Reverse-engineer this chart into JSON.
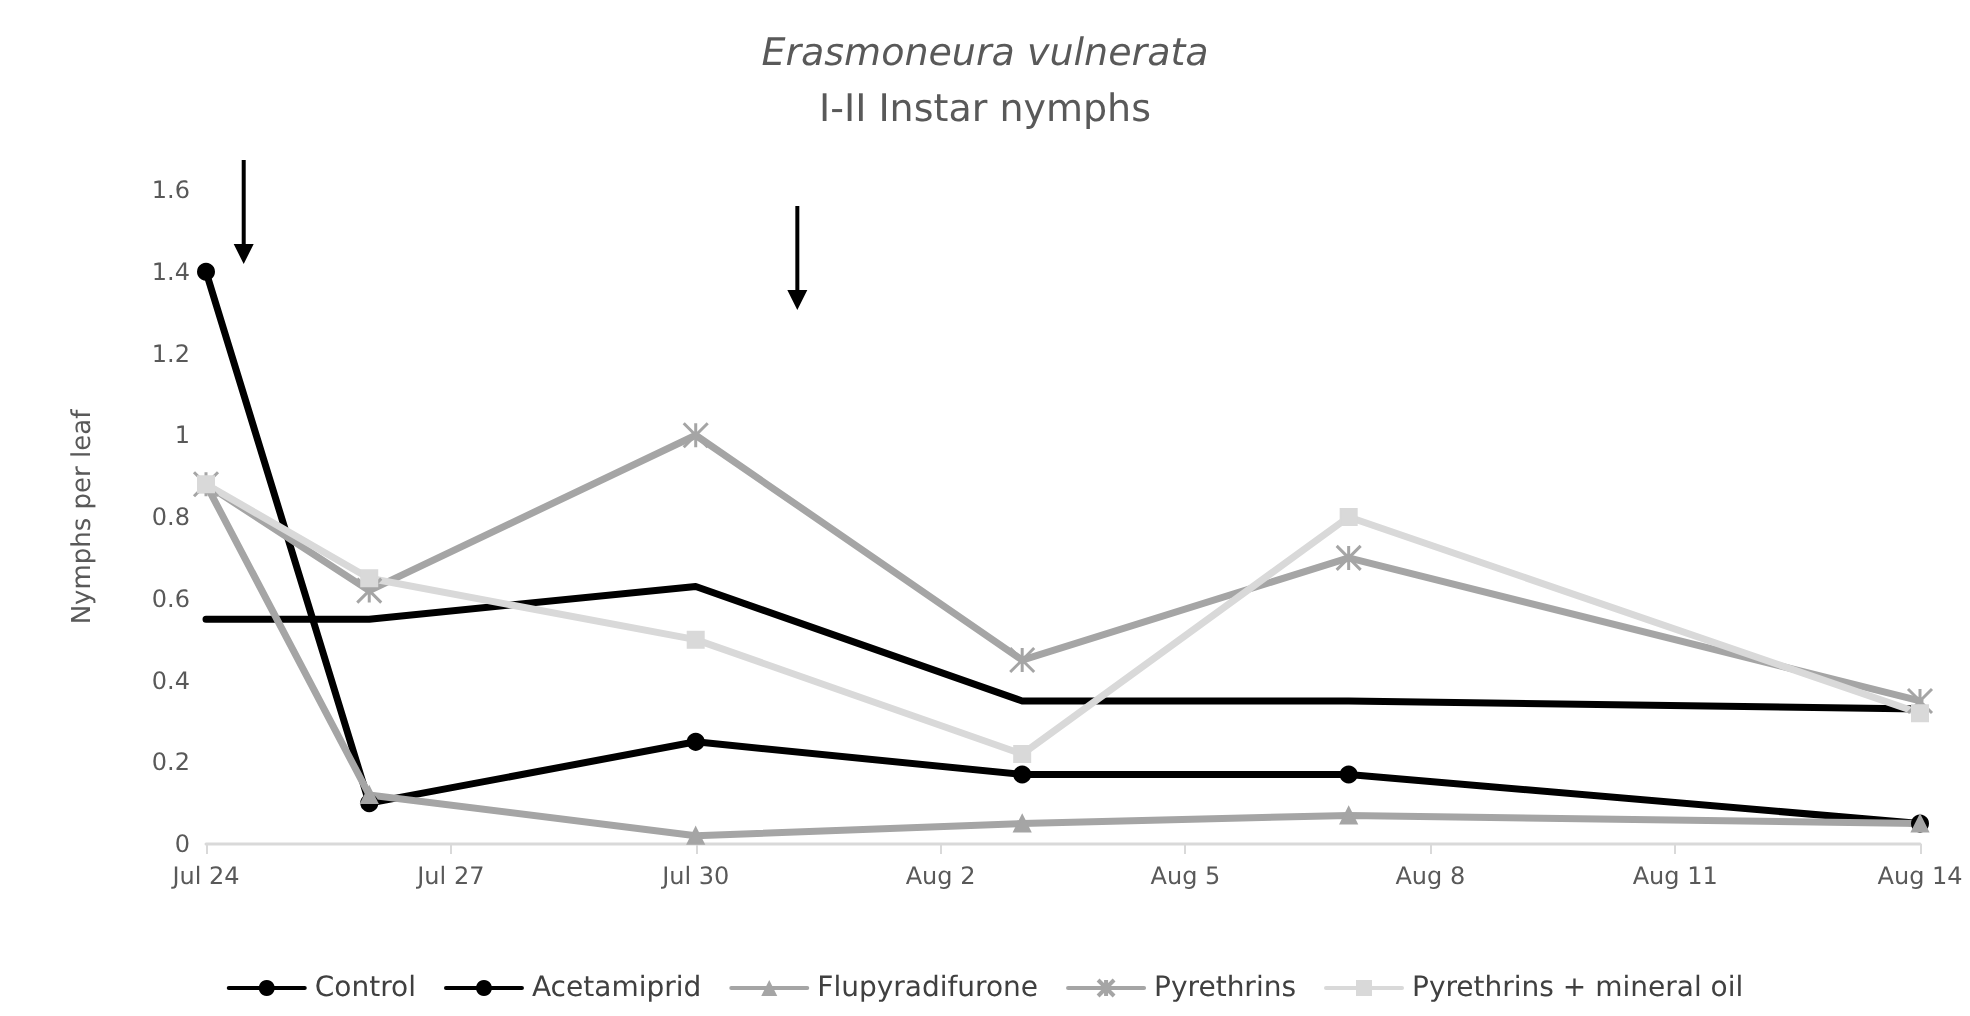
{
  "chart_data": {
    "type": "line",
    "title": "Erasmoneura vulnerata",
    "subtitle": "I-II Instar nymphs",
    "ylabel": "Nymphs per leaf",
    "x": [
      "--07-24",
      "--07-26",
      "--07-30",
      "--08-03",
      "--08-07",
      "--08-14"
    ],
    "xlim": [
      "--07-24",
      "--08-14"
    ],
    "xticks": [
      {
        "value": "--07-24",
        "label": "Jul 24"
      },
      {
        "value": "--07-27",
        "label": "Jul 27"
      },
      {
        "value": "--07-30",
        "label": "Jul 30"
      },
      {
        "value": "--08-02",
        "label": "Aug 2"
      },
      {
        "value": "--08-05",
        "label": "Aug 5"
      },
      {
        "value": "--08-08",
        "label": "Aug 8"
      },
      {
        "value": "--08-11",
        "label": "Aug 11"
      },
      {
        "value": "--08-14",
        "label": "Aug 14"
      }
    ],
    "ylim": [
      0,
      1.6
    ],
    "yticks": [
      0,
      0.2,
      0.4,
      0.6,
      0.8,
      1,
      1.2,
      1.4,
      1.6
    ],
    "series": [
      {
        "name": "Control",
        "color": "#000000",
        "marker": "none",
        "values": [
          0.55,
          0.55,
          0.63,
          0.35,
          0.35,
          0.33
        ]
      },
      {
        "name": "Acetamiprid",
        "color": "#000000",
        "marker": "circle",
        "values": [
          1.4,
          0.1,
          0.25,
          0.17,
          0.17,
          0.05
        ]
      },
      {
        "name": "Flupyradifurone",
        "color": "#a5a5a5",
        "marker": "triangle",
        "values": [
          0.88,
          0.12,
          0.02,
          0.05,
          0.07,
          0.05
        ]
      },
      {
        "name": "Pyrethrins",
        "color": "#a5a5a5",
        "marker": "cross",
        "values": [
          0.88,
          0.62,
          1.0,
          0.45,
          0.7,
          0.35
        ]
      },
      {
        "name": "Pyrethrins + mineral oil",
        "color": "#d9d9d9",
        "marker": "square",
        "values": [
          0.88,
          0.65,
          0.5,
          0.22,
          0.8,
          0.32
        ]
      }
    ],
    "grid": false,
    "legend": "bottom"
  }
}
